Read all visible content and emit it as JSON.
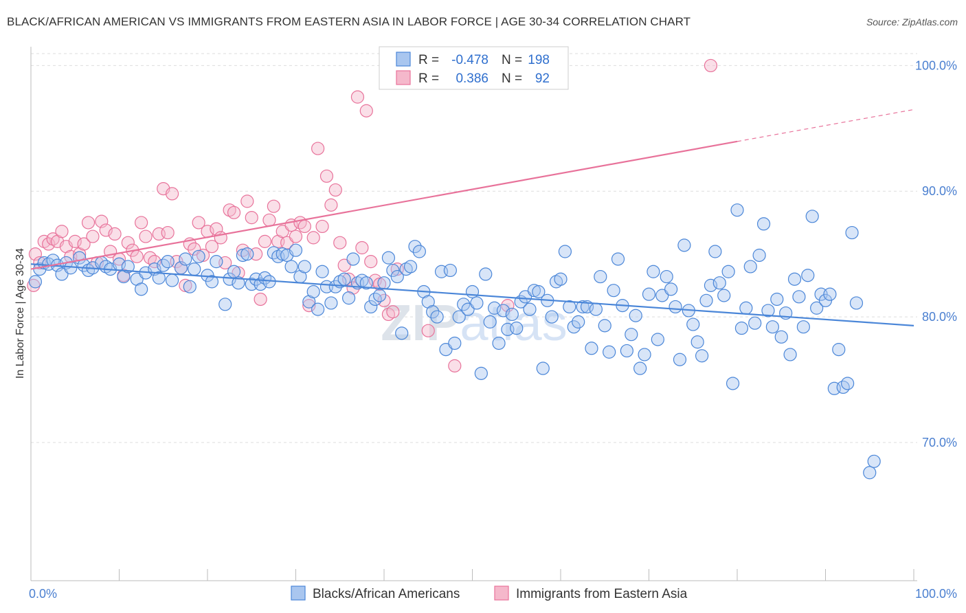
{
  "header": {
    "title": "BLACK/AFRICAN AMERICAN VS IMMIGRANTS FROM EASTERN ASIA IN LABOR FORCE | AGE 30-34 CORRELATION CHART",
    "source": "Source: ZipAtlas.com"
  },
  "watermark": "ZIPatlas",
  "chart_data": {
    "type": "scatter",
    "title": "BLACK/AFRICAN AMERICAN VS IMMIGRANTS FROM EASTERN ASIA IN LABOR FORCE | AGE 30-34 CORRELATION CHART",
    "xlabel": "",
    "ylabel": "In Labor Force | Age 30-34",
    "xlim": [
      0,
      100
    ],
    "ylim": [
      59,
      101.5
    ],
    "x_tick_labels": [
      "0.0%",
      "100.0%"
    ],
    "y_ticks": [
      70,
      80,
      90,
      100
    ],
    "y_tick_labels": [
      "70.0%",
      "80.0%",
      "90.0%",
      "100.0%"
    ],
    "grid": true,
    "legend_position": "top-center",
    "colors": {
      "blue": "#4a86d8",
      "blue_fill": "#a9c6ef",
      "pink": "#e8729a",
      "pink_fill": "#f5b8cb"
    },
    "stats": [
      {
        "r_label": "R =",
        "r": "-0.478",
        "n_label": "N =",
        "n": "198"
      },
      {
        "r_label": "R =",
        "r": "0.386",
        "n_label": "N =",
        "n": "92"
      }
    ],
    "series": [
      {
        "name": "Blacks/African Americans",
        "color": "#4a86d8",
        "trend": {
          "x": [
            0,
            100
          ],
          "y": [
            84.2,
            79.3
          ]
        },
        "points": [
          [
            0.5,
            82.8
          ],
          [
            1,
            83.8
          ],
          [
            1.5,
            84.3
          ],
          [
            2,
            84.2
          ],
          [
            2.5,
            84.5
          ],
          [
            3,
            84.1
          ],
          [
            3.5,
            83.4
          ],
          [
            4,
            84.3
          ],
          [
            4.5,
            83.9
          ],
          [
            5.5,
            84.7
          ],
          [
            6,
            84.1
          ],
          [
            6.5,
            83.7
          ],
          [
            7,
            83.9
          ],
          [
            8,
            84.3
          ],
          [
            8.5,
            84.0
          ],
          [
            9,
            83.8
          ],
          [
            10,
            84.2
          ],
          [
            10.5,
            83.2
          ],
          [
            11,
            84.0
          ],
          [
            12,
            83.0
          ],
          [
            12.5,
            82.2
          ],
          [
            13,
            83.5
          ],
          [
            14,
            83.8
          ],
          [
            14.5,
            83.1
          ],
          [
            15,
            84.1
          ],
          [
            15.5,
            84.4
          ],
          [
            16,
            82.9
          ],
          [
            17,
            83.9
          ],
          [
            17.5,
            84.6
          ],
          [
            18,
            82.4
          ],
          [
            18.5,
            83.8
          ],
          [
            19,
            84.8
          ],
          [
            20,
            83.3
          ],
          [
            20.5,
            82.8
          ],
          [
            21,
            84.4
          ],
          [
            22,
            81.0
          ],
          [
            22.5,
            83.0
          ],
          [
            23,
            83.6
          ],
          [
            23.5,
            82.7
          ],
          [
            24,
            84.9
          ],
          [
            24.5,
            85.0
          ],
          [
            25,
            82.6
          ],
          [
            25.5,
            83.0
          ],
          [
            26,
            82.6
          ],
          [
            26.5,
            83.1
          ],
          [
            27,
            82.8
          ],
          [
            27.5,
            85.1
          ],
          [
            28,
            84.8
          ],
          [
            28.5,
            85.0
          ],
          [
            29,
            84.9
          ],
          [
            29.5,
            84.0
          ],
          [
            30,
            85.3
          ],
          [
            30.5,
            83.2
          ],
          [
            31,
            84.0
          ],
          [
            31.5,
            81.2
          ],
          [
            32,
            82.0
          ],
          [
            32.5,
            80.6
          ],
          [
            33,
            83.6
          ],
          [
            33.5,
            82.4
          ],
          [
            34,
            81.1
          ],
          [
            34.5,
            82.4
          ],
          [
            35,
            82.8
          ],
          [
            35.5,
            83.0
          ],
          [
            36,
            81.5
          ],
          [
            36.5,
            84.6
          ],
          [
            37,
            82.7
          ],
          [
            37.5,
            82.9
          ],
          [
            38,
            82.7
          ],
          [
            38.5,
            80.8
          ],
          [
            39,
            81.4
          ],
          [
            39.5,
            81.7
          ],
          [
            40,
            82.7
          ],
          [
            40.5,
            84.7
          ],
          [
            41,
            83.7
          ],
          [
            41.5,
            83.2
          ],
          [
            42,
            78.7
          ],
          [
            42.5,
            83.8
          ],
          [
            43,
            84.0
          ],
          [
            43.5,
            85.6
          ],
          [
            44,
            85.2
          ],
          [
            44.5,
            82.0
          ],
          [
            45,
            81.2
          ],
          [
            45.5,
            80.4
          ],
          [
            46,
            80.0
          ],
          [
            46.5,
            83.6
          ],
          [
            47,
            77.4
          ],
          [
            47.5,
            83.7
          ],
          [
            48,
            77.9
          ],
          [
            48.5,
            80.0
          ],
          [
            49,
            81.0
          ],
          [
            49.5,
            80.6
          ],
          [
            50,
            82.0
          ],
          [
            50.5,
            81.1
          ],
          [
            51,
            75.5
          ],
          [
            51.5,
            83.4
          ],
          [
            52,
            79.6
          ],
          [
            52.5,
            80.7
          ],
          [
            53,
            77.9
          ],
          [
            53.5,
            80.5
          ],
          [
            54,
            79.0
          ],
          [
            54.5,
            80.2
          ],
          [
            55,
            79.1
          ],
          [
            55.5,
            81.2
          ],
          [
            56,
            81.6
          ],
          [
            56.5,
            80.6
          ],
          [
            57,
            82.1
          ],
          [
            57.5,
            82.0
          ],
          [
            58,
            75.9
          ],
          [
            58.5,
            81.3
          ],
          [
            59,
            80.0
          ],
          [
            59.5,
            82.8
          ],
          [
            60,
            83.0
          ],
          [
            60.5,
            85.2
          ],
          [
            61,
            80.8
          ],
          [
            61.5,
            79.2
          ],
          [
            62,
            79.6
          ],
          [
            62.5,
            80.8
          ],
          [
            63,
            80.8
          ],
          [
            63.5,
            77.5
          ],
          [
            64,
            80.6
          ],
          [
            64.5,
            83.2
          ],
          [
            65,
            79.3
          ],
          [
            65.5,
            77.2
          ],
          [
            66,
            82.1
          ],
          [
            66.5,
            84.6
          ],
          [
            67,
            80.9
          ],
          [
            67.5,
            77.3
          ],
          [
            68,
            78.6
          ],
          [
            68.5,
            80.1
          ],
          [
            69,
            75.9
          ],
          [
            69.5,
            77.0
          ],
          [
            70,
            81.8
          ],
          [
            70.5,
            83.6
          ],
          [
            71,
            78.2
          ],
          [
            71.5,
            81.7
          ],
          [
            72,
            83.2
          ],
          [
            72.5,
            82.2
          ],
          [
            73,
            80.8
          ],
          [
            73.5,
            76.6
          ],
          [
            74,
            85.7
          ],
          [
            74.5,
            80.5
          ],
          [
            75,
            79.4
          ],
          [
            75.5,
            78.0
          ],
          [
            76,
            76.9
          ],
          [
            76.5,
            81.3
          ],
          [
            77,
            82.5
          ],
          [
            77.5,
            85.2
          ],
          [
            78,
            82.7
          ],
          [
            78.5,
            81.7
          ],
          [
            79,
            83.6
          ],
          [
            79.5,
            74.7
          ],
          [
            80,
            88.5
          ],
          [
            80.5,
            79.1
          ],
          [
            81,
            80.7
          ],
          [
            81.5,
            84.0
          ],
          [
            82,
            79.5
          ],
          [
            82.5,
            84.9
          ],
          [
            83,
            87.4
          ],
          [
            83.5,
            80.5
          ],
          [
            84,
            79.2
          ],
          [
            84.5,
            81.4
          ],
          [
            85,
            78.4
          ],
          [
            85.5,
            80.3
          ],
          [
            86,
            77.0
          ],
          [
            86.5,
            83.0
          ],
          [
            87,
            81.6
          ],
          [
            87.5,
            79.2
          ],
          [
            88,
            83.3
          ],
          [
            88.5,
            88.0
          ],
          [
            89,
            80.7
          ],
          [
            89.5,
            81.8
          ],
          [
            90,
            81.3
          ],
          [
            90.5,
            81.8
          ],
          [
            91,
            74.3
          ],
          [
            91.5,
            77.4
          ],
          [
            92,
            74.4
          ],
          [
            92.5,
            74.7
          ],
          [
            93,
            86.7
          ],
          [
            93.5,
            81.1
          ],
          [
            95,
            67.6
          ],
          [
            95.5,
            68.5
          ]
        ]
      },
      {
        "name": "Immigrants from Eastern Asia",
        "color": "#e8729a",
        "trend": {
          "x": [
            0,
            100
          ],
          "y": [
            83.8,
            96.5
          ],
          "solid_to": 80
        },
        "points": [
          [
            0.3,
            82.5
          ],
          [
            0.5,
            85.0
          ],
          [
            1,
            84.3
          ],
          [
            1.5,
            86.0
          ],
          [
            2,
            85.8
          ],
          [
            2.5,
            86.2
          ],
          [
            3,
            86.0
          ],
          [
            3.5,
            86.8
          ],
          [
            4,
            85.6
          ],
          [
            4.5,
            84.8
          ],
          [
            5,
            86.0
          ],
          [
            5.5,
            85.0
          ],
          [
            6,
            85.8
          ],
          [
            6.5,
            87.5
          ],
          [
            7,
            86.4
          ],
          [
            7.5,
            84.3
          ],
          [
            8,
            87.6
          ],
          [
            8.5,
            86.9
          ],
          [
            9,
            85.2
          ],
          [
            9.5,
            86.6
          ],
          [
            10,
            84.6
          ],
          [
            10.5,
            83.3
          ],
          [
            11,
            85.9
          ],
          [
            11.5,
            85.3
          ],
          [
            12,
            84.8
          ],
          [
            12.5,
            87.5
          ],
          [
            13,
            86.4
          ],
          [
            13.5,
            84.7
          ],
          [
            14,
            84.4
          ],
          [
            14.5,
            86.6
          ],
          [
            15,
            90.2
          ],
          [
            15.5,
            86.7
          ],
          [
            16,
            89.8
          ],
          [
            16.5,
            84.4
          ],
          [
            17,
            83.9
          ],
          [
            17.5,
            82.5
          ],
          [
            18,
            85.8
          ],
          [
            18.5,
            85.4
          ],
          [
            19,
            87.5
          ],
          [
            19.5,
            84.9
          ],
          [
            20,
            86.8
          ],
          [
            20.5,
            85.6
          ],
          [
            21,
            87.0
          ],
          [
            21.5,
            86.3
          ],
          [
            22,
            84.3
          ],
          [
            22.5,
            88.5
          ],
          [
            23,
            88.3
          ],
          [
            23.5,
            83.5
          ],
          [
            24,
            85.3
          ],
          [
            24.5,
            89.2
          ],
          [
            25,
            87.9
          ],
          [
            25.5,
            85.0
          ],
          [
            26,
            81.4
          ],
          [
            26.5,
            86.0
          ],
          [
            27,
            87.7
          ],
          [
            27.5,
            88.8
          ],
          [
            28,
            86.0
          ],
          [
            28.5,
            86.8
          ],
          [
            29,
            85.9
          ],
          [
            29.5,
            87.3
          ],
          [
            30,
            86.4
          ],
          [
            30.5,
            87.5
          ],
          [
            31,
            87.2
          ],
          [
            31.5,
            80.9
          ],
          [
            32,
            86.3
          ],
          [
            32.5,
            93.4
          ],
          [
            33,
            87.2
          ],
          [
            33.5,
            91.2
          ],
          [
            34,
            88.9
          ],
          [
            34.5,
            90.1
          ],
          [
            35,
            85.9
          ],
          [
            35.5,
            84.1
          ],
          [
            36,
            83.0
          ],
          [
            36.5,
            82.3
          ],
          [
            37,
            97.5
          ],
          [
            37.5,
            85.5
          ],
          [
            38,
            96.4
          ],
          [
            38.5,
            84.4
          ],
          [
            39,
            82.9
          ],
          [
            39.5,
            82.6
          ],
          [
            40,
            81.3
          ],
          [
            40.5,
            80.2
          ],
          [
            41,
            80.4
          ],
          [
            41.5,
            83.8
          ],
          [
            42,
            100.0
          ],
          [
            42.5,
            100.0
          ],
          [
            43,
            100.0
          ],
          [
            45,
            78.9
          ],
          [
            48,
            76.1
          ],
          [
            51,
            100.0
          ],
          [
            54,
            80.9
          ],
          [
            77,
            100.0
          ]
        ]
      }
    ]
  },
  "legend_bottom": {
    "items": [
      {
        "label": "Blacks/African Americans"
      },
      {
        "label": "Immigrants from Eastern Asia"
      }
    ]
  }
}
